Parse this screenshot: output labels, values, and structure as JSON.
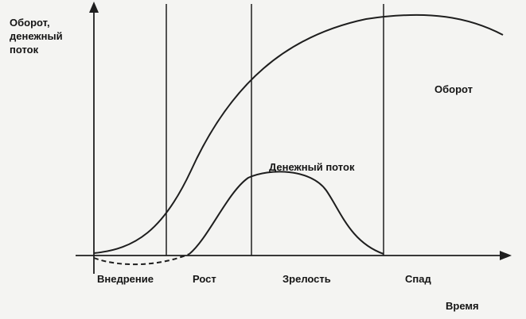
{
  "diagram": {
    "y_axis_label": "Оборот,\nденежный\nпоток",
    "x_axis_label": "Время",
    "revenue_label": "Оборот",
    "cashflow_label": "Денежный поток",
    "stages": [
      "Внедрение",
      "Рост",
      "Зрелость",
      "Спад"
    ]
  }
}
